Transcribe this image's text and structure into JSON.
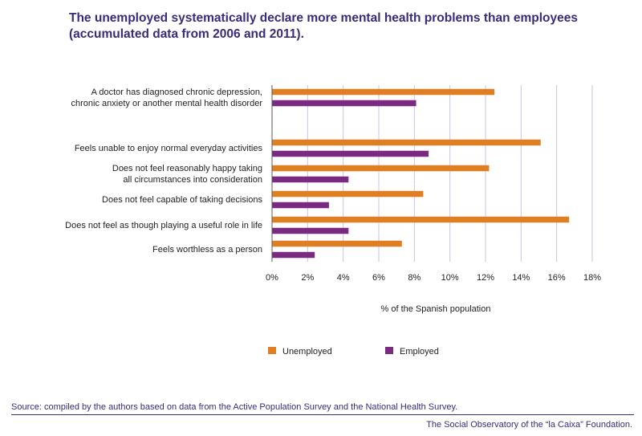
{
  "title": "The unemployed systematically declare more mental health problems than employees (accumulated data from 2006 and 2011).",
  "source": "Source: compiled by the authors based on data from the Active Population Survey and the National Health Survey.",
  "credit": "The Social Observatory of the “la Caixa” Foundation.",
  "chart_data": {
    "type": "bar",
    "orientation": "horizontal",
    "categories": [
      [
        "A doctor has diagnosed chronic depression,",
        "chronic anxiety or another mental health disorder"
      ],
      [
        "Feels unable to enjoy normal everyday activities"
      ],
      [
        "Does not feel reasonably happy taking",
        "all circumstances into consideration"
      ],
      [
        "Does not feel capable of taking decisions"
      ],
      [
        "Does not feel as though playing a useful role in life"
      ],
      [
        "Feels worthless as a person"
      ]
    ],
    "series": [
      {
        "name": "Unemployed",
        "color": "#e07e24",
        "values": [
          12.5,
          15.1,
          12.2,
          8.5,
          16.7,
          7.3
        ]
      },
      {
        "name": "Employed",
        "color": "#7b2a82",
        "values": [
          8.1,
          8.8,
          4.3,
          3.2,
          4.3,
          2.4
        ]
      }
    ],
    "xlabel": "% of the Spanish population",
    "xlim": [
      0,
      18
    ],
    "xticks": [
      "0%",
      "2%",
      "4%",
      "6%",
      "8%",
      "10%",
      "12%",
      "14%",
      "16%",
      "18%"
    ],
    "grid": true,
    "legend_position": "bottom"
  }
}
